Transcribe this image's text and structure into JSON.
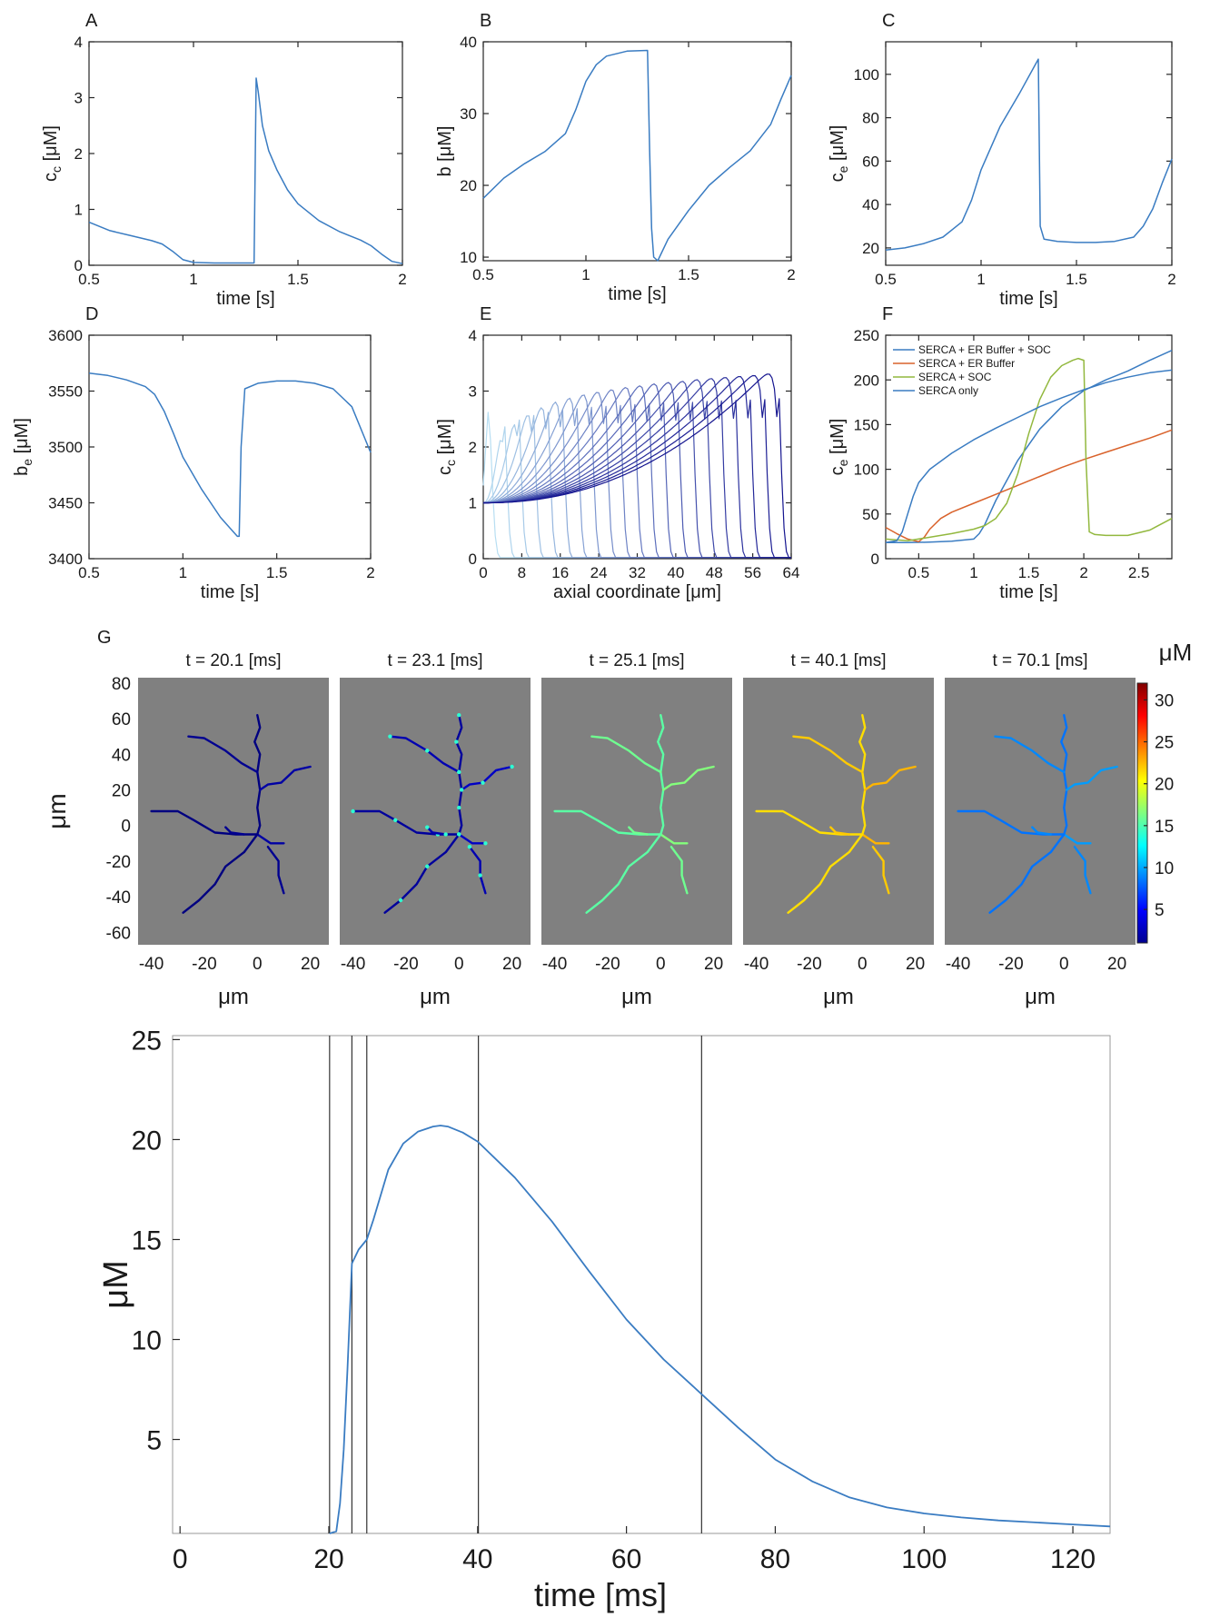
{
  "figure": {
    "panel_label_g": "G"
  },
  "chart_data": [
    {
      "id": "A",
      "type": "line",
      "panel_label": "A",
      "xlabel": "time [s]",
      "ylabel_main": "c",
      "ylabel_sub": "c",
      "ylabel_unit": " [μM]",
      "xlim": [
        0.5,
        2
      ],
      "ylim": [
        0,
        4
      ],
      "xticks": [
        0.5,
        1,
        1.5,
        2
      ],
      "xtick_labels": [
        "0.5",
        "1",
        "1.5",
        "2"
      ],
      "yticks": [
        0,
        1,
        2,
        3,
        4
      ],
      "ytick_labels": [
        "0",
        "1",
        "2",
        "3",
        "4"
      ],
      "series": [
        {
          "color": "#3a7cc2",
          "x": [
            0.5,
            0.6,
            0.7,
            0.8,
            0.85,
            0.9,
            0.95,
            1.0,
            1.1,
            1.2,
            1.29,
            1.3,
            1.31,
            1.33,
            1.36,
            1.4,
            1.45,
            1.5,
            1.6,
            1.7,
            1.8,
            1.85,
            1.9,
            1.95,
            2.0
          ],
          "y": [
            0.77,
            0.62,
            0.53,
            0.44,
            0.38,
            0.25,
            0.1,
            0.05,
            0.04,
            0.04,
            0.04,
            3.35,
            3.1,
            2.5,
            2.05,
            1.7,
            1.35,
            1.1,
            0.8,
            0.6,
            0.45,
            0.35,
            0.2,
            0.07,
            0.03
          ]
        }
      ]
    },
    {
      "id": "B",
      "type": "line",
      "panel_label": "B",
      "xlabel": "time [s]",
      "ylabel_main": "b",
      "ylabel_sub": "",
      "ylabel_unit": " [μM]",
      "xlim": [
        0.5,
        2
      ],
      "ylim": [
        9.5,
        40
      ],
      "xticks": [
        0.5,
        1,
        1.5,
        2
      ],
      "xtick_labels": [
        "0.5",
        "1",
        "1.5",
        "2"
      ],
      "yticks": [
        10,
        20,
        30,
        40
      ],
      "ytick_labels": [
        "10",
        "20",
        "30",
        "40"
      ],
      "series": [
        {
          "color": "#3a7cc2",
          "x": [
            0.5,
            0.6,
            0.7,
            0.8,
            0.9,
            0.95,
            1.0,
            1.05,
            1.1,
            1.2,
            1.3,
            1.31,
            1.32,
            1.33,
            1.35,
            1.4,
            1.5,
            1.6,
            1.7,
            1.8,
            1.9,
            1.95,
            2.0
          ],
          "y": [
            18.2,
            21.0,
            23.0,
            24.7,
            27.2,
            30.5,
            34.5,
            36.8,
            38.0,
            38.7,
            38.8,
            25,
            14,
            10,
            9.5,
            12.5,
            16.5,
            20,
            22.5,
            24.8,
            28.5,
            32,
            35.3
          ]
        }
      ]
    },
    {
      "id": "C",
      "type": "line",
      "panel_label": "C",
      "xlabel": "time [s]",
      "ylabel_main": "c",
      "ylabel_sub": "e",
      "ylabel_unit": " [μM]",
      "xlim": [
        0.5,
        2
      ],
      "ylim": [
        12,
        115
      ],
      "xticks": [
        0.5,
        1,
        1.5,
        2
      ],
      "xtick_labels": [
        "0.5",
        "1",
        "1.5",
        "2"
      ],
      "yticks": [
        20,
        40,
        60,
        80,
        100
      ],
      "ytick_labels": [
        "20",
        "40",
        "60",
        "80",
        "100"
      ],
      "series": [
        {
          "color": "#3a7cc2",
          "x": [
            0.5,
            0.6,
            0.7,
            0.8,
            0.9,
            0.95,
            1.0,
            1.1,
            1.2,
            1.3,
            1.31,
            1.33,
            1.4,
            1.5,
            1.6,
            1.7,
            1.8,
            1.85,
            1.9,
            1.95,
            2.0
          ],
          "y": [
            19,
            20,
            22,
            25,
            32,
            42,
            56,
            76,
            91,
            107,
            30,
            24,
            23,
            22.5,
            22.5,
            23,
            25,
            30,
            38,
            50,
            61
          ]
        }
      ]
    },
    {
      "id": "D",
      "type": "line",
      "panel_label": "D",
      "xlabel": "time [s]",
      "ylabel_main": "b",
      "ylabel_sub": "e",
      "ylabel_unit": " [μM]",
      "xlim": [
        0.5,
        2
      ],
      "ylim": [
        3400,
        3600
      ],
      "xticks": [
        0.5,
        1,
        1.5,
        2
      ],
      "xtick_labels": [
        "0.5",
        "1",
        "1.5",
        "2"
      ],
      "yticks": [
        3400,
        3450,
        3500,
        3550,
        3600
      ],
      "ytick_labels": [
        "3400",
        "3450",
        "3500",
        "3550",
        "3600"
      ],
      "series": [
        {
          "color": "#3a7cc2",
          "x": [
            0.5,
            0.6,
            0.7,
            0.8,
            0.85,
            0.9,
            0.95,
            1.0,
            1.1,
            1.2,
            1.29,
            1.3,
            1.31,
            1.33,
            1.4,
            1.5,
            1.6,
            1.7,
            1.8,
            1.9,
            2.0
          ],
          "y": [
            3566,
            3564,
            3560,
            3554,
            3547,
            3532,
            3512,
            3491,
            3462,
            3437,
            3420,
            3420,
            3500,
            3552,
            3557,
            3559,
            3559,
            3557,
            3552,
            3536,
            3495
          ]
        }
      ]
    },
    {
      "id": "E",
      "type": "line",
      "panel_label": "E",
      "xlabel": "axial coordinate [μm]",
      "ylabel_main": "c",
      "ylabel_sub": "c",
      "ylabel_unit": " [μM]",
      "xlim": [
        0,
        64
      ],
      "ylim": [
        0,
        4
      ],
      "xticks": [
        0,
        8,
        16,
        24,
        32,
        40,
        48,
        56,
        64
      ],
      "xtick_labels": [
        "0",
        "8",
        "16",
        "24",
        "32",
        "40",
        "48",
        "56",
        "64"
      ],
      "yticks": [
        0,
        1,
        2,
        3,
        4
      ],
      "ytick_labels": [
        "0",
        "1",
        "2",
        "3",
        "4"
      ],
      "wave_fronts": [
        1,
        4,
        7,
        10,
        13,
        16,
        19,
        22,
        25,
        28,
        31,
        34,
        37,
        40,
        43,
        46,
        49,
        52,
        55,
        58,
        61
      ],
      "wave_peaks": [
        2.62,
        2.9,
        3.05,
        3.15,
        3.22,
        3.27,
        3.3,
        3.33,
        3.35,
        3.37,
        3.39,
        3.4,
        3.42,
        3.43,
        3.44,
        3.46,
        3.47,
        3.48,
        3.49,
        3.5,
        3.52
      ],
      "wave_baseline_start": 1.0,
      "color_light": "#b7def2",
      "color_dark": "#14148f"
    },
    {
      "id": "F",
      "type": "line",
      "panel_label": "F",
      "xlabel": "time [s]",
      "ylabel_main": "c",
      "ylabel_sub": "e",
      "ylabel_unit": " [μM]",
      "xlim": [
        0.2,
        2.8
      ],
      "ylim": [
        0,
        250
      ],
      "xticks": [
        0.5,
        1,
        1.5,
        2,
        2.5
      ],
      "xtick_labels": [
        "0.5",
        "1",
        "1.5",
        "2",
        "2.5"
      ],
      "yticks": [
        0,
        50,
        100,
        150,
        200,
        250
      ],
      "ytick_labels": [
        "0",
        "50",
        "100",
        "150",
        "200",
        "250"
      ],
      "legend_position": "top-left",
      "series": [
        {
          "name": "SERCA + ER Buffer + SOC",
          "color": "#3a7cc2",
          "x": [
            0.2,
            0.4,
            0.6,
            0.8,
            1.0,
            1.05,
            1.1,
            1.2,
            1.4,
            1.6,
            1.8,
            2.0,
            2.2,
            2.4,
            2.6,
            2.8
          ],
          "y": [
            18,
            18,
            18.5,
            19.5,
            22,
            28,
            38,
            65,
            110,
            145,
            170,
            188,
            200,
            210,
            222,
            233
          ]
        },
        {
          "name": "SERCA + ER Buffer",
          "color": "#d9622b",
          "x": [
            0.2,
            0.3,
            0.4,
            0.5,
            0.55,
            0.6,
            0.7,
            0.8,
            1.0,
            1.2,
            1.4,
            1.6,
            1.8,
            2.0,
            2.2,
            2.4,
            2.6,
            2.8
          ],
          "y": [
            35,
            28,
            22,
            19,
            24,
            33,
            45,
            52,
            62,
            72,
            82,
            92,
            102,
            111,
            119,
            127,
            135,
            144
          ]
        },
        {
          "name": "SERCA + SOC",
          "color": "#92b83e",
          "x": [
            0.2,
            0.4,
            0.6,
            0.8,
            1.0,
            1.1,
            1.2,
            1.3,
            1.4,
            1.5,
            1.6,
            1.7,
            1.8,
            1.9,
            1.95,
            2.0,
            2.02,
            2.05,
            2.1,
            2.2,
            2.4,
            2.6,
            2.8
          ],
          "y": [
            22,
            20,
            24,
            28,
            33,
            37,
            45,
            62,
            95,
            140,
            178,
            203,
            216,
            222,
            224,
            222,
            110,
            30,
            27,
            26,
            26,
            32,
            45
          ]
        },
        {
          "name": "SERCA only",
          "color": "#3a7cc2",
          "x": [
            0.2,
            0.3,
            0.35,
            0.4,
            0.45,
            0.5,
            0.6,
            0.8,
            1.0,
            1.2,
            1.4,
            1.6,
            1.8,
            2.0,
            2.2,
            2.4,
            2.6,
            2.8
          ],
          "y": [
            18,
            20,
            30,
            50,
            70,
            85,
            100,
            118,
            133,
            146,
            158,
            170,
            180,
            189,
            197,
            203,
            208,
            211
          ]
        }
      ]
    },
    {
      "id": "G",
      "type": "heatmap",
      "snapshots": [
        {
          "title": "t = 20.1 [ms]",
          "level": 1.5
        },
        {
          "title": "t = 23.1 [ms]",
          "level": 2.5,
          "speckle": 14
        },
        {
          "title": "t = 25.1 [ms]",
          "level": 16
        },
        {
          "title": "t = 40.1 [ms]",
          "level": 22
        },
        {
          "title": "t = 70.1 [ms]",
          "level": 9
        }
      ],
      "xlabel": "μm",
      "ylabel": "μm",
      "xlim": [
        -45,
        27
      ],
      "ylim": [
        -67,
        83
      ],
      "xticks": [
        -40,
        -20,
        0,
        20
      ],
      "xtick_labels": [
        "-40",
        "-20",
        "0",
        "20"
      ],
      "yticks": [
        80,
        60,
        40,
        20,
        0,
        -20,
        -40,
        -60
      ],
      "ytick_labels": [
        "80",
        "60",
        "40",
        "20",
        "0",
        "-20",
        "-40",
        "-60"
      ],
      "colorbar": {
        "unit": "μM",
        "min": 1,
        "max": 32,
        "ticks": [
          5,
          10,
          15,
          20,
          25,
          30
        ],
        "tick_labels": [
          "5",
          "10",
          "15",
          "20",
          "25",
          "30"
        ]
      },
      "background": "#808080"
    },
    {
      "id": "H",
      "type": "line",
      "xlabel": "time [ms]",
      "ylabel": "μM",
      "xlim": [
        -1,
        125
      ],
      "ylim": [
        0.3,
        25.2
      ],
      "xticks": [
        0,
        20,
        40,
        60,
        80,
        100,
        120
      ],
      "xtick_labels": [
        "0",
        "20",
        "40",
        "60",
        "80",
        "100",
        "120"
      ],
      "yticks": [
        5,
        10,
        15,
        20,
        25
      ],
      "ytick_labels": [
        "5",
        "10",
        "15",
        "20",
        "25"
      ],
      "vlines": [
        20.1,
        23.1,
        25.1,
        40.1,
        70.1
      ],
      "series": [
        {
          "color": "#3a7cc2",
          "x": [
            20.1,
            21,
            21.5,
            22,
            22.5,
            23.1,
            24,
            25.1,
            26,
            28,
            30,
            32,
            34,
            35,
            36,
            38,
            40,
            45,
            50,
            55,
            60,
            65,
            70,
            75,
            80,
            85,
            90,
            95,
            100,
            105,
            110,
            115,
            120,
            125
          ],
          "y": [
            0.3,
            0.4,
            1.8,
            4.5,
            8.5,
            13.8,
            14.5,
            15.0,
            16.0,
            18.5,
            19.8,
            20.4,
            20.65,
            20.7,
            20.65,
            20.35,
            19.9,
            18.1,
            15.9,
            13.4,
            11.0,
            9.0,
            7.3,
            5.6,
            4.0,
            2.9,
            2.1,
            1.6,
            1.3,
            1.1,
            0.95,
            0.85,
            0.75,
            0.65
          ]
        }
      ]
    }
  ]
}
